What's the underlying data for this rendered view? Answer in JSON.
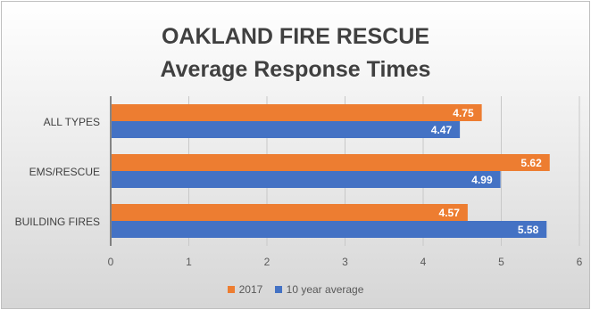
{
  "chart_data": {
    "type": "bar",
    "orientation": "horizontal",
    "title": "OAKLAND FIRE RESCUE",
    "subtitle": "Average Response Times",
    "categories": [
      "ALL TYPES",
      "EMS/RESCUE",
      "BUILDING FIRES"
    ],
    "series": [
      {
        "name": "2017",
        "values": [
          4.75,
          5.62,
          4.57
        ],
        "color": "#ed7d31"
      },
      {
        "name": "10 year average",
        "values": [
          4.47,
          4.99,
          5.58
        ],
        "color": "#4472c4"
      }
    ],
    "xlim": [
      0,
      6
    ],
    "xticks": [
      "0",
      "1",
      "2",
      "3",
      "4",
      "5",
      "6"
    ],
    "grid": true,
    "data_labels": true,
    "legend_position": "bottom"
  }
}
